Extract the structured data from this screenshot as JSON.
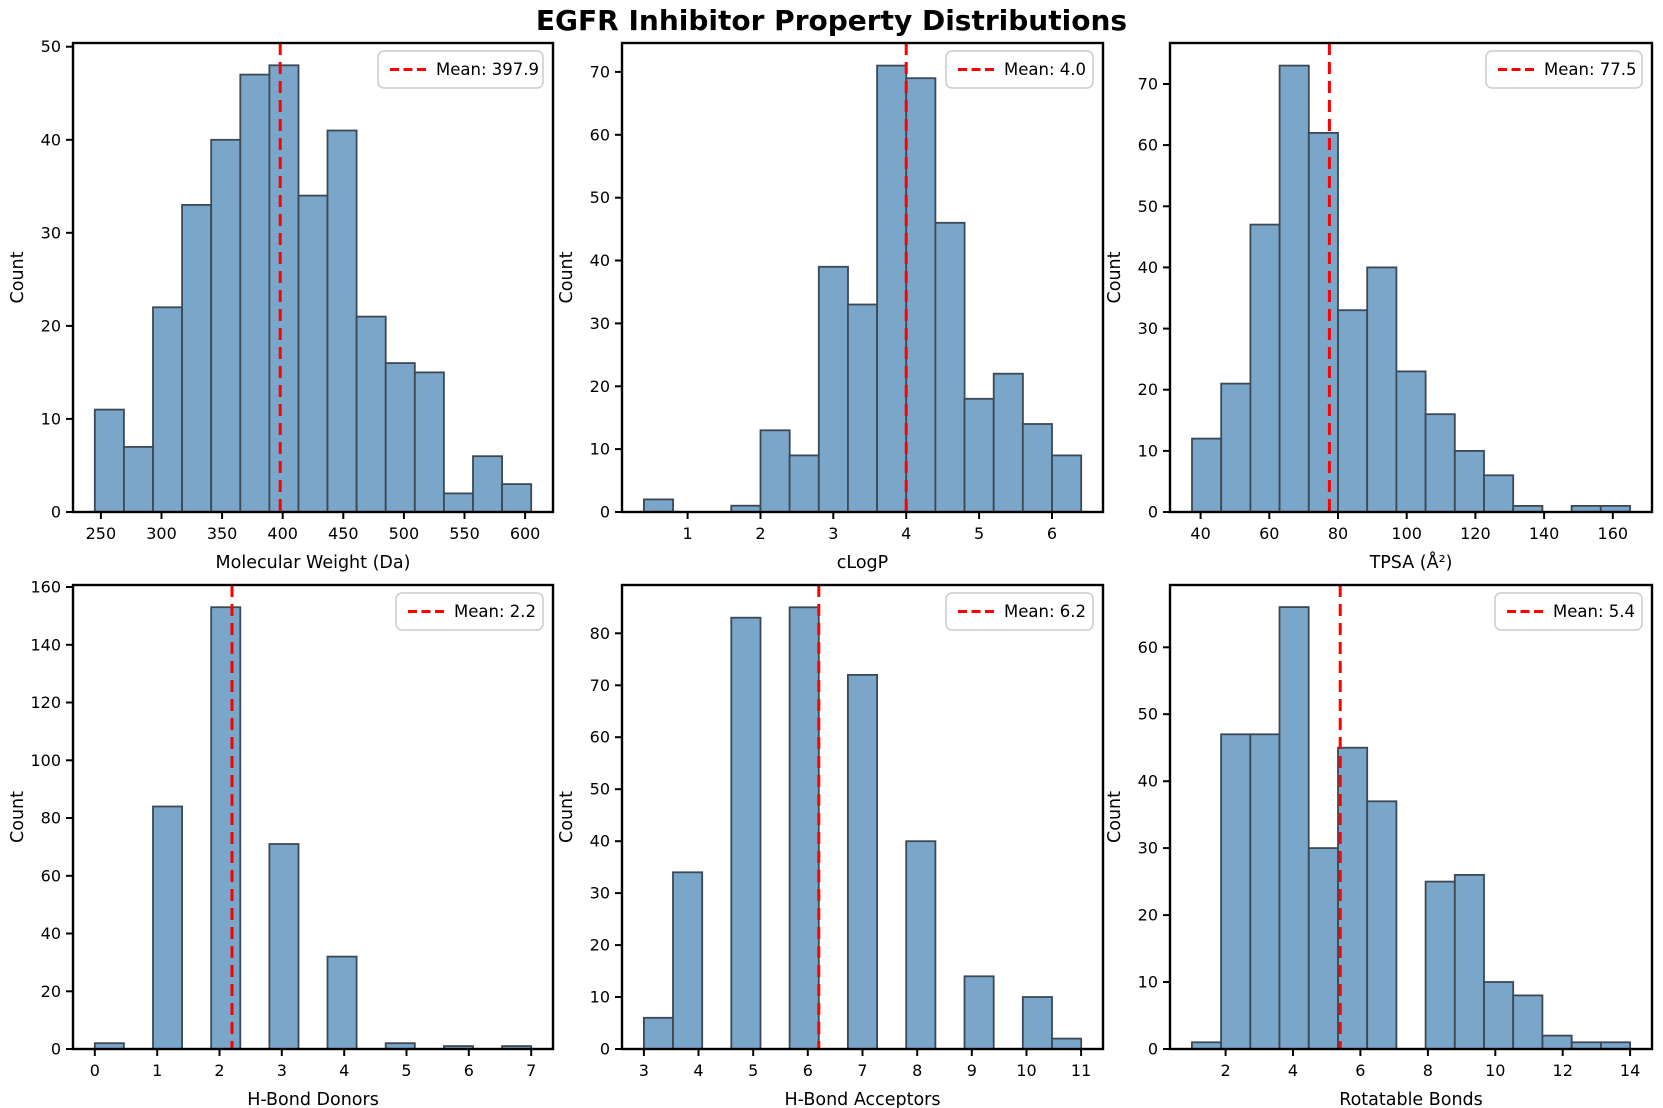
{
  "title": "EGFR Inhibitor Property Distributions",
  "colors": {
    "bar_fill": "#7AA6CA",
    "bar_edge": "#3C4853",
    "mean_line": "#FF0000",
    "legend_border": "#CCCCCC",
    "axis": "#000000",
    "background": "#FFFFFF"
  },
  "chart_data": [
    {
      "type": "bar",
      "subtype": "histogram",
      "id": "molecular-weight",
      "xlabel": "Molecular Weight (Da)",
      "ylabel": "Count",
      "legend": {
        "label": "Mean: 397.9",
        "position": "upper-right"
      },
      "mean": 397.9,
      "bins": {
        "start": 245,
        "width": 24
      },
      "values": [
        11,
        7,
        22,
        33,
        40,
        47,
        48,
        34,
        41,
        21,
        16,
        15,
        2,
        6,
        3
      ],
      "xlim": [
        227,
        623
      ],
      "ylim": [
        0,
        50.4
      ],
      "xticks": [
        250,
        300,
        350,
        400,
        450,
        500,
        550,
        600
      ],
      "yticks": [
        0,
        10,
        20,
        30,
        40,
        50
      ],
      "grid": false
    },
    {
      "type": "bar",
      "subtype": "histogram",
      "id": "clogp",
      "xlabel": "cLogP",
      "ylabel": "Count",
      "legend": {
        "label": "Mean: 4.0",
        "position": "upper-right"
      },
      "mean": 4.0,
      "bins": {
        "start": 0.4,
        "width": 0.4
      },
      "values": [
        2,
        0,
        0,
        1,
        13,
        9,
        39,
        33,
        71,
        69,
        46,
        18,
        22,
        14,
        9
      ],
      "xlim": [
        0.1,
        6.7
      ],
      "ylim": [
        0,
        74.6
      ],
      "xticks": [
        1,
        2,
        3,
        4,
        5,
        6
      ],
      "yticks": [
        0,
        10,
        20,
        30,
        40,
        50,
        60,
        70
      ],
      "grid": false
    },
    {
      "type": "bar",
      "subtype": "histogram",
      "id": "tpsa",
      "xlabel": "TPSA (Å²)",
      "ylabel": "Count",
      "legend": {
        "label": "Mean: 77.5",
        "position": "upper-right"
      },
      "mean": 77.5,
      "bins": {
        "start": 37.5,
        "width": 8.5
      },
      "values": [
        12,
        21,
        47,
        73,
        62,
        33,
        40,
        23,
        16,
        10,
        6,
        1,
        0,
        1,
        1
      ],
      "xlim": [
        31.1,
        171.4
      ],
      "ylim": [
        0,
        76.7
      ],
      "xticks": [
        40,
        60,
        80,
        100,
        120,
        140,
        160
      ],
      "yticks": [
        0,
        10,
        20,
        30,
        40,
        50,
        60,
        70
      ],
      "grid": false
    },
    {
      "type": "bar",
      "subtype": "histogram",
      "id": "h-bond-donors",
      "xlabel": "H-Bond Donors",
      "ylabel": "Count",
      "legend": {
        "label": "Mean: 2.2",
        "position": "upper-right"
      },
      "mean": 2.2,
      "bins": {
        "start": 0,
        "width": 0.46667
      },
      "values": [
        2,
        0,
        84,
        0,
        153,
        0,
        71,
        0,
        32,
        0,
        2,
        0,
        1,
        0,
        1
      ],
      "xlim": [
        -0.35,
        7.35
      ],
      "ylim": [
        0,
        160.7
      ],
      "xticks": [
        0,
        1,
        2,
        3,
        4,
        5,
        6,
        7
      ],
      "yticks": [
        0,
        20,
        40,
        60,
        80,
        100,
        120,
        140,
        160
      ],
      "grid": false
    },
    {
      "type": "bar",
      "subtype": "histogram",
      "id": "h-bond-acceptors",
      "xlabel": "H-Bond Acceptors",
      "ylabel": "Count",
      "legend": {
        "label": "Mean: 6.2",
        "position": "upper-right"
      },
      "mean": 6.2,
      "bins": {
        "start": 3,
        "width": 0.53333
      },
      "values": [
        6,
        34,
        0,
        83,
        0,
        85,
        0,
        72,
        0,
        40,
        0,
        14,
        0,
        10,
        2
      ],
      "xlim": [
        2.6,
        11.4
      ],
      "ylim": [
        0,
        89.3
      ],
      "xticks": [
        3,
        4,
        5,
        6,
        7,
        8,
        9,
        10,
        11
      ],
      "yticks": [
        0,
        10,
        20,
        30,
        40,
        50,
        60,
        70,
        80
      ],
      "grid": false
    },
    {
      "type": "bar",
      "subtype": "histogram",
      "id": "rotatable-bonds",
      "xlabel": "Rotatable Bonds",
      "ylabel": "Count",
      "legend": {
        "label": "Mean: 5.4",
        "position": "upper-right"
      },
      "mean": 5.4,
      "bins": {
        "start": 1,
        "width": 0.86667
      },
      "values": [
        1,
        47,
        47,
        66,
        30,
        45,
        37,
        0,
        25,
        26,
        10,
        8,
        2,
        1,
        1
      ],
      "xlim": [
        0.35,
        14.65
      ],
      "ylim": [
        0,
        69.3
      ],
      "xticks": [
        2,
        4,
        6,
        8,
        10,
        12,
        14
      ],
      "yticks": [
        0,
        10,
        20,
        30,
        40,
        50,
        60
      ],
      "grid": false
    }
  ]
}
